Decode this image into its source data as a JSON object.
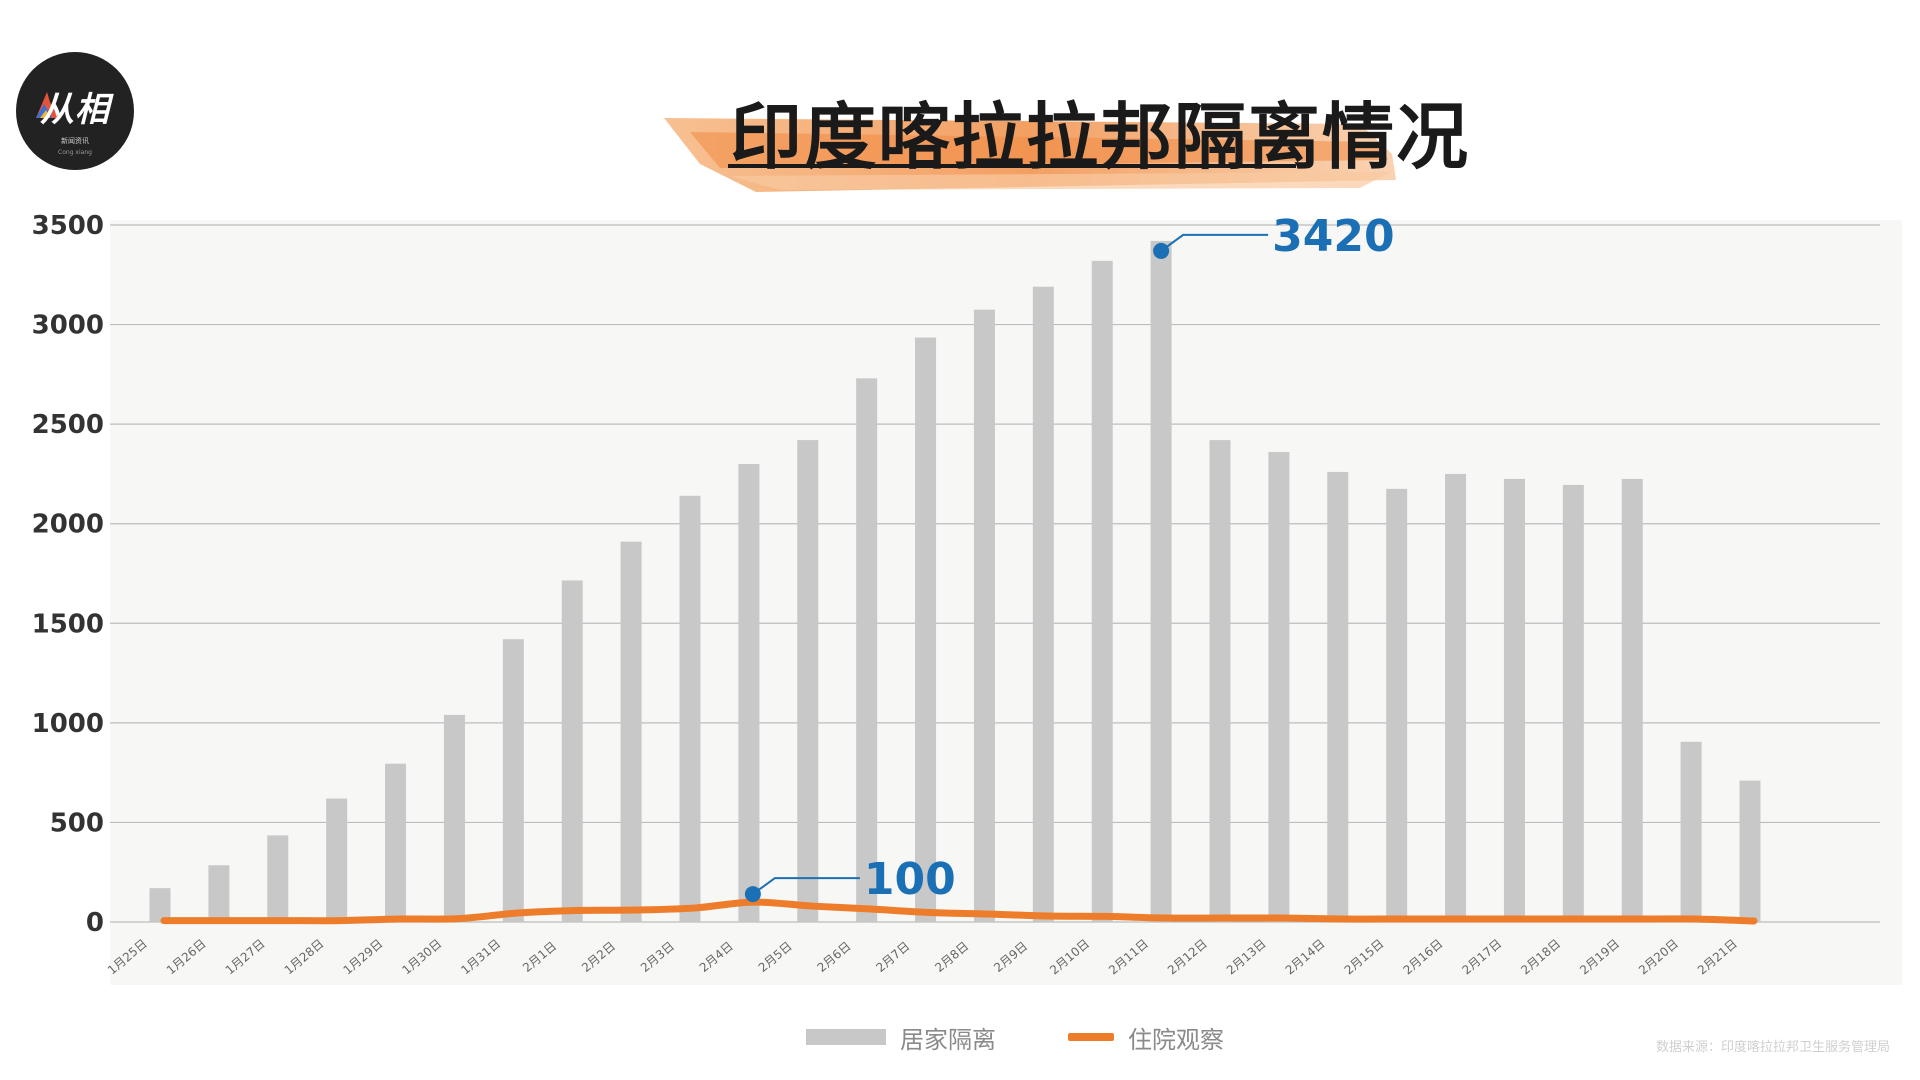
{
  "title": "印度喀拉拉邦隔离情况",
  "logo": {
    "text": "从相",
    "sub": "新闻资讯",
    "sub2": "Cong xiang"
  },
  "source": "数据来源：印度喀拉拉邦卫生服务管理局",
  "colors": {
    "bar": "#c8c8c8",
    "line": "#ee7d2b",
    "annotation": "#1a6fb5",
    "title_brush": "#f2a05e"
  },
  "chart_data": {
    "type": "bar",
    "title": "印度喀拉拉邦隔离情况",
    "xlabel": "",
    "ylabel": "",
    "ylim": [
      0,
      3500
    ],
    "yticks": [
      0,
      500,
      1000,
      1500,
      2000,
      2500,
      3000,
      3500
    ],
    "grid": true,
    "legend_position": "bottom",
    "categories": [
      "1月25日",
      "1月26日",
      "1月27日",
      "1月28日",
      "1月29日",
      "1月30日",
      "1月31日",
      "2月1日",
      "2月2日",
      "2月3日",
      "2月4日",
      "2月5日",
      "2月6日",
      "2月7日",
      "2月8日",
      "2月9日",
      "2月10日",
      "2月11日",
      "2月12日",
      "2月13日",
      "2月14日",
      "2月15日",
      "2月16日",
      "2月17日",
      "2月18日",
      "2月19日",
      "2月20日",
      "2月21日"
    ],
    "series": [
      {
        "name": "居家隔离",
        "type": "bar",
        "values": [
          170,
          285,
          435,
          620,
          795,
          1040,
          1420,
          1715,
          1910,
          2140,
          2300,
          2420,
          2730,
          2935,
          3075,
          3190,
          3320,
          3420,
          2420,
          2360,
          2260,
          2175,
          2250,
          2225,
          2195,
          2225,
          905,
          710
        ]
      },
      {
        "name": "住院观察",
        "type": "line",
        "values": [
          7,
          7,
          7,
          7,
          15,
          17,
          45,
          58,
          60,
          70,
          100,
          80,
          65,
          48,
          40,
          30,
          28,
          20,
          20,
          20,
          15,
          15,
          15,
          15,
          15,
          15,
          15,
          5
        ]
      }
    ],
    "annotations": [
      {
        "series": "居家隔离",
        "category": "2月11日",
        "value": 3420,
        "label": "3420"
      },
      {
        "series": "住院观察",
        "category": "2月4日",
        "value": 100,
        "label": "100"
      }
    ]
  }
}
